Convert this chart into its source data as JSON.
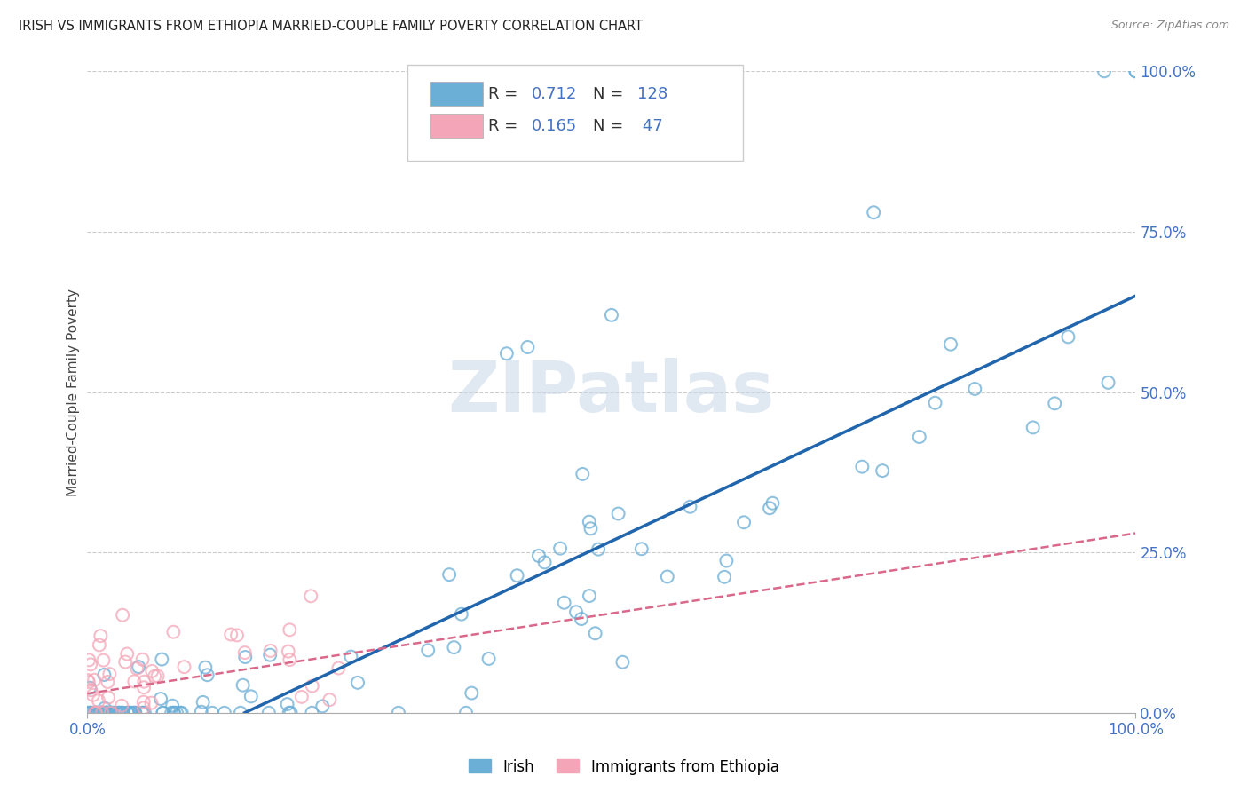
{
  "title": "IRISH VS IMMIGRANTS FROM ETHIOPIA MARRIED-COUPLE FAMILY POVERTY CORRELATION CHART",
  "source": "Source: ZipAtlas.com",
  "ylabel": "Married-Couple Family Poverty",
  "ytick_values": [
    0,
    25,
    50,
    75,
    100
  ],
  "ytick_labels": [
    "0.0%",
    "25.0%",
    "50.0%",
    "75.0%",
    "100.0%"
  ],
  "xtick_values": [
    0,
    100
  ],
  "xtick_labels": [
    "0.0%",
    "100.0%"
  ],
  "legend_irish_R": "0.712",
  "legend_irish_N": "128",
  "legend_eth_R": "0.165",
  "legend_eth_N": " 47",
  "legend_label1": "Irish",
  "legend_label2": "Immigrants from Ethiopia",
  "irish_color": "#6baed6",
  "eth_color": "#f4a6b8",
  "irish_line_color": "#2166ac",
  "eth_line_color": "#d9688a",
  "tick_color": "#4472c4",
  "watermark_color": "#c8d8e8",
  "irish_line_x0": 15,
  "irish_line_y0": 0,
  "irish_line_x1": 100,
  "irish_line_y1": 65,
  "eth_line_x0": 0,
  "eth_line_y0": 3,
  "eth_line_x1": 100,
  "eth_line_y1": 28,
  "xlim": [
    0,
    100
  ],
  "ylim": [
    0,
    100
  ]
}
